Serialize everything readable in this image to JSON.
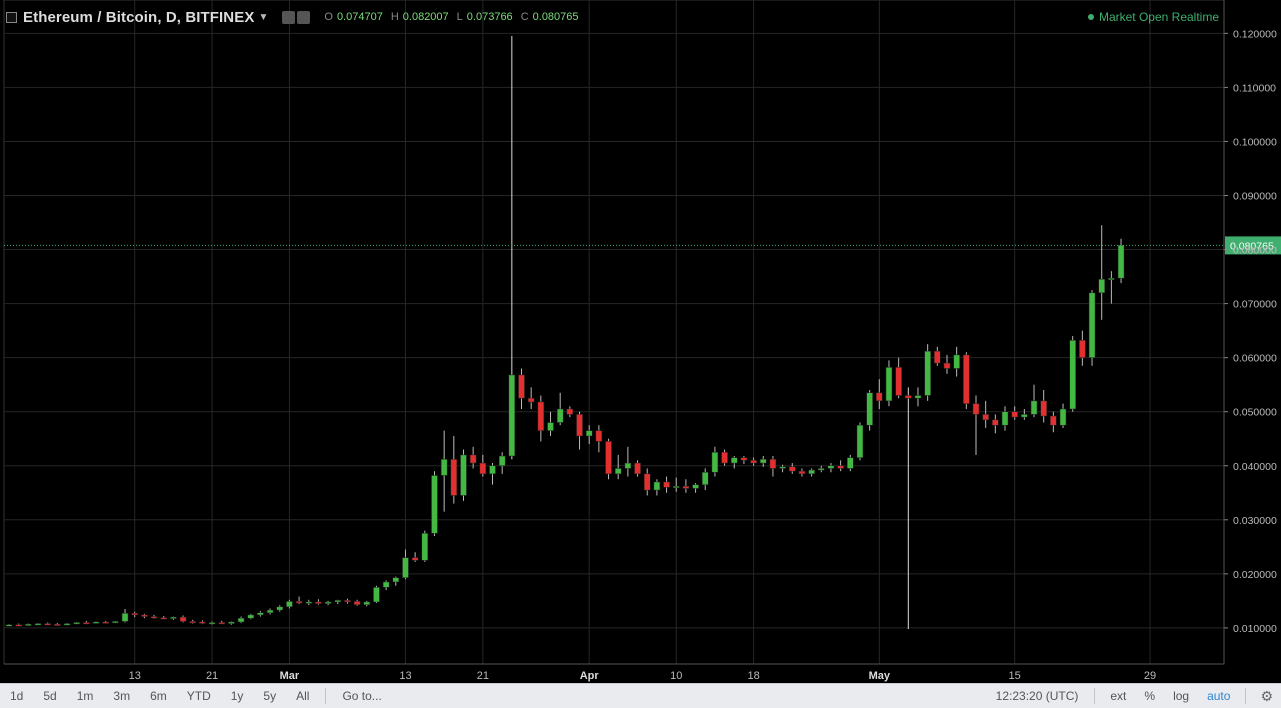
{
  "header": {
    "title": "Ethereum / Bitcoin, D, BITFINEX",
    "ohlc": [
      {
        "key": "O",
        "value": "0.074707"
      },
      {
        "key": "H",
        "value": "0.082007"
      },
      {
        "key": "L",
        "value": "0.073766"
      },
      {
        "key": "C",
        "value": "0.080765"
      }
    ],
    "status": "Market Open Realtime"
  },
  "colors": {
    "up": "#43b843",
    "down": "#e23030",
    "grid": "#262626",
    "price_line": "#3fae6e",
    "background": "#000000"
  },
  "bottom_bar": {
    "ranges": [
      "1d",
      "5d",
      "1m",
      "3m",
      "6m",
      "YTD",
      "1y",
      "5y",
      "All"
    ],
    "goto": "Go to...",
    "time": "12:23:20 (UTC)",
    "options": [
      "ext",
      "%",
      "log",
      "auto"
    ],
    "active_option": "auto"
  },
  "chart_data": {
    "type": "candlestick",
    "y_range": [
      0.006,
      0.121
    ],
    "y_ticks": [
      "0.120000",
      "0.110000",
      "0.100000",
      "0.090000",
      "0.080000",
      "0.070000",
      "0.060000",
      "0.050000",
      "0.040000",
      "0.030000",
      "0.020000",
      "0.010000"
    ],
    "y_tick_values": [
      0.12,
      0.11,
      0.1,
      0.09,
      0.08,
      0.07,
      0.06,
      0.05,
      0.04,
      0.03,
      0.02,
      0.01
    ],
    "last_price": "0.080765",
    "last_price_value": 0.080765,
    "x_ticks": [
      {
        "label": "13",
        "index": 13
      },
      {
        "label": "21",
        "index": 21
      },
      {
        "label": "Mar",
        "index": 29
      },
      {
        "label": "13",
        "index": 41
      },
      {
        "label": "21",
        "index": 49
      },
      {
        "label": "Apr",
        "index": 60
      },
      {
        "label": "10",
        "index": 69
      },
      {
        "label": "18",
        "index": 77
      },
      {
        "label": "May",
        "index": 90
      },
      {
        "label": "15",
        "index": 104
      },
      {
        "label": "29",
        "index": 118
      }
    ],
    "candles": [
      [
        0.0105,
        0.0107,
        0.0103,
        0.0106
      ],
      [
        0.0106,
        0.0108,
        0.0104,
        0.0105
      ],
      [
        0.0105,
        0.0108,
        0.0104,
        0.0107
      ],
      [
        0.0107,
        0.0109,
        0.0105,
        0.0108
      ],
      [
        0.0108,
        0.011,
        0.0106,
        0.0107
      ],
      [
        0.0107,
        0.0109,
        0.0105,
        0.0106
      ],
      [
        0.0106,
        0.0109,
        0.0105,
        0.0108
      ],
      [
        0.0108,
        0.0111,
        0.0107,
        0.011
      ],
      [
        0.011,
        0.0113,
        0.0108,
        0.0109
      ],
      [
        0.0109,
        0.0112,
        0.0108,
        0.0111
      ],
      [
        0.0111,
        0.0113,
        0.0109,
        0.011
      ],
      [
        0.011,
        0.0113,
        0.0109,
        0.0112
      ],
      [
        0.0112,
        0.0135,
        0.011,
        0.0127
      ],
      [
        0.0127,
        0.013,
        0.012,
        0.0124
      ],
      [
        0.0124,
        0.0126,
        0.0118,
        0.0121
      ],
      [
        0.0121,
        0.0124,
        0.0117,
        0.0119
      ],
      [
        0.0119,
        0.0122,
        0.0116,
        0.0118
      ],
      [
        0.0118,
        0.0121,
        0.0115,
        0.012
      ],
      [
        0.012,
        0.0123,
        0.011,
        0.0112
      ],
      [
        0.0112,
        0.0115,
        0.0108,
        0.0111
      ],
      [
        0.0111,
        0.0114,
        0.0107,
        0.0109
      ],
      [
        0.0109,
        0.0112,
        0.0106,
        0.011
      ],
      [
        0.011,
        0.0113,
        0.0107,
        0.0108
      ],
      [
        0.0108,
        0.0112,
        0.0106,
        0.0111
      ],
      [
        0.0111,
        0.0121,
        0.0109,
        0.0118
      ],
      [
        0.0118,
        0.0126,
        0.0116,
        0.0124
      ],
      [
        0.0124,
        0.0131,
        0.0121,
        0.0128
      ],
      [
        0.0128,
        0.0136,
        0.0125,
        0.0133
      ],
      [
        0.0133,
        0.0142,
        0.013,
        0.0139
      ],
      [
        0.0139,
        0.0152,
        0.0136,
        0.0149
      ],
      [
        0.0149,
        0.0158,
        0.0144,
        0.0146
      ],
      [
        0.0146,
        0.0152,
        0.0142,
        0.0148
      ],
      [
        0.0148,
        0.0153,
        0.0143,
        0.0145
      ],
      [
        0.0145,
        0.015,
        0.0142,
        0.0148
      ],
      [
        0.0148,
        0.0152,
        0.0144,
        0.0151
      ],
      [
        0.0151,
        0.0154,
        0.0145,
        0.0149
      ],
      [
        0.0149,
        0.0152,
        0.0141,
        0.0143
      ],
      [
        0.0143,
        0.015,
        0.014,
        0.0148
      ],
      [
        0.0148,
        0.0178,
        0.0146,
        0.0175
      ],
      [
        0.0175,
        0.0188,
        0.017,
        0.0185
      ],
      [
        0.0185,
        0.0195,
        0.0178,
        0.0193
      ],
      [
        0.0193,
        0.0245,
        0.019,
        0.023
      ],
      [
        0.023,
        0.024,
        0.0222,
        0.0225
      ],
      [
        0.0225,
        0.028,
        0.0222,
        0.0275
      ],
      [
        0.0275,
        0.039,
        0.027,
        0.0382
      ],
      [
        0.0382,
        0.0465,
        0.0315,
        0.0412
      ],
      [
        0.0412,
        0.0455,
        0.033,
        0.0345
      ],
      [
        0.0345,
        0.043,
        0.0335,
        0.042
      ],
      [
        0.042,
        0.0435,
        0.0395,
        0.0405
      ],
      [
        0.0405,
        0.042,
        0.038,
        0.0385
      ],
      [
        0.0385,
        0.0405,
        0.0365,
        0.04
      ],
      [
        0.04,
        0.0425,
        0.0385,
        0.0418
      ],
      [
        0.0418,
        0.1195,
        0.0412,
        0.0568
      ],
      [
        0.0568,
        0.058,
        0.0505,
        0.0525
      ],
      [
        0.0525,
        0.0545,
        0.0505,
        0.0518
      ],
      [
        0.0518,
        0.053,
        0.0445,
        0.0465
      ],
      [
        0.0465,
        0.05,
        0.0455,
        0.048
      ],
      [
        0.048,
        0.0535,
        0.0475,
        0.0505
      ],
      [
        0.0505,
        0.051,
        0.049,
        0.0495
      ],
      [
        0.0495,
        0.05,
        0.043,
        0.0455
      ],
      [
        0.0455,
        0.0475,
        0.044,
        0.0465
      ],
      [
        0.0465,
        0.0475,
        0.0425,
        0.0445
      ],
      [
        0.0445,
        0.045,
        0.0375,
        0.0385
      ],
      [
        0.0385,
        0.042,
        0.0375,
        0.0395
      ],
      [
        0.0395,
        0.0435,
        0.038,
        0.0405
      ],
      [
        0.0405,
        0.041,
        0.038,
        0.0385
      ],
      [
        0.0385,
        0.0395,
        0.0345,
        0.0355
      ],
      [
        0.0355,
        0.0375,
        0.0345,
        0.037
      ],
      [
        0.037,
        0.038,
        0.035,
        0.036
      ],
      [
        0.036,
        0.0378,
        0.0352,
        0.0362
      ],
      [
        0.0362,
        0.0375,
        0.035,
        0.0358
      ],
      [
        0.0358,
        0.0368,
        0.035,
        0.0365
      ],
      [
        0.0365,
        0.0395,
        0.0355,
        0.0388
      ],
      [
        0.0388,
        0.0435,
        0.038,
        0.0425
      ],
      [
        0.0425,
        0.043,
        0.04,
        0.0405
      ],
      [
        0.0405,
        0.0418,
        0.0395,
        0.0415
      ],
      [
        0.0415,
        0.0418,
        0.0403,
        0.041
      ],
      [
        0.041,
        0.0415,
        0.04,
        0.0405
      ],
      [
        0.0405,
        0.0418,
        0.0398,
        0.0412
      ],
      [
        0.0412,
        0.0418,
        0.038,
        0.0395
      ],
      [
        0.0395,
        0.0402,
        0.0388,
        0.0398
      ],
      [
        0.0398,
        0.0405,
        0.0385,
        0.039
      ],
      [
        0.039,
        0.0395,
        0.038,
        0.0385
      ],
      [
        0.0385,
        0.0395,
        0.038,
        0.0392
      ],
      [
        0.0392,
        0.04,
        0.0388,
        0.0395
      ],
      [
        0.0395,
        0.0405,
        0.0388,
        0.04
      ],
      [
        0.04,
        0.041,
        0.039,
        0.0395
      ],
      [
        0.0395,
        0.042,
        0.039,
        0.0415
      ],
      [
        0.0415,
        0.048,
        0.041,
        0.0475
      ],
      [
        0.0475,
        0.054,
        0.0465,
        0.0535
      ],
      [
        0.0535,
        0.056,
        0.0505,
        0.052
      ],
      [
        0.052,
        0.0595,
        0.051,
        0.0582
      ],
      [
        0.0582,
        0.06,
        0.0525,
        0.053
      ],
      [
        0.053,
        0.0545,
        0.0098,
        0.0525
      ],
      [
        0.0525,
        0.0545,
        0.051,
        0.053
      ],
      [
        0.053,
        0.0625,
        0.052,
        0.0612
      ],
      [
        0.0612,
        0.062,
        0.0585,
        0.059
      ],
      [
        0.059,
        0.0605,
        0.057,
        0.058
      ],
      [
        0.058,
        0.062,
        0.0565,
        0.0605
      ],
      [
        0.0605,
        0.061,
        0.0505,
        0.0515
      ],
      [
        0.0515,
        0.053,
        0.042,
        0.0495
      ],
      [
        0.0495,
        0.052,
        0.047,
        0.0485
      ],
      [
        0.0485,
        0.0495,
        0.046,
        0.0475
      ],
      [
        0.0475,
        0.051,
        0.0465,
        0.05
      ],
      [
        0.05,
        0.051,
        0.0485,
        0.049
      ],
      [
        0.049,
        0.0505,
        0.0485,
        0.0495
      ],
      [
        0.0495,
        0.055,
        0.049,
        0.052
      ],
      [
        0.052,
        0.054,
        0.048,
        0.0492
      ],
      [
        0.0492,
        0.05,
        0.0462,
        0.0475
      ],
      [
        0.0475,
        0.0515,
        0.047,
        0.0505
      ],
      [
        0.0505,
        0.064,
        0.05,
        0.0632
      ],
      [
        0.0632,
        0.065,
        0.0585,
        0.06
      ],
      [
        0.06,
        0.0725,
        0.0585,
        0.072
      ],
      [
        0.072,
        0.0845,
        0.067,
        0.0745
      ],
      [
        0.0745,
        0.076,
        0.07,
        0.0747
      ],
      [
        0.0747,
        0.082,
        0.0738,
        0.0808
      ]
    ]
  }
}
